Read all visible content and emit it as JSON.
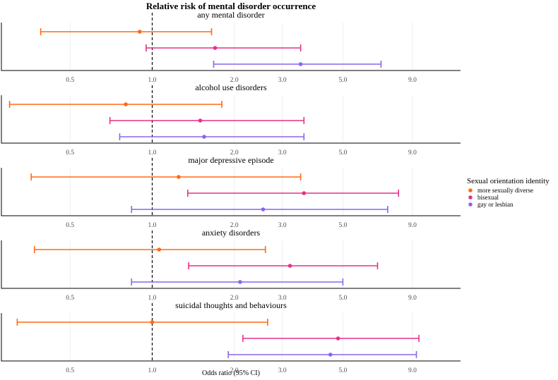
{
  "chart_data": {
    "type": "forest",
    "title": "Relative risk of mental disorder occurrence",
    "xlabel": "Odds ratio (95% CI)",
    "x_scale": "log",
    "xlim": [
      0.28,
      13.5
    ],
    "x_ticks": [
      0.5,
      1.0,
      2.0,
      3.0,
      5.0,
      9.0
    ],
    "x_tick_labels": [
      "0.5",
      "1.0",
      "2.0",
      "3.0",
      "5.0",
      "9.0"
    ],
    "reference_line": 1.0,
    "legend": {
      "title": "Sexual orientation identity",
      "position": "right",
      "entries": [
        {
          "name": "more sexually diverse",
          "color": "#FF6A13"
        },
        {
          "name": "bisexual",
          "color": "#E6308A"
        },
        {
          "name": "gay or lesbian",
          "color": "#8866EE"
        }
      ]
    },
    "panels": [
      {
        "title": "any mental disorder",
        "rows": [
          {
            "group": "more sexually diverse",
            "or": 0.9,
            "lower": 0.39,
            "upper": 1.65
          },
          {
            "group": "bisexual",
            "or": 1.7,
            "lower": 0.95,
            "upper": 3.5
          },
          {
            "group": "gay or lesbian",
            "or": 3.5,
            "lower": 1.68,
            "upper": 6.9
          }
        ]
      },
      {
        "title": "alcohol use disorders",
        "rows": [
          {
            "group": "more sexually diverse",
            "or": 0.8,
            "lower": 0.3,
            "upper": 1.8
          },
          {
            "group": "bisexual",
            "or": 1.5,
            "lower": 0.7,
            "upper": 3.6
          },
          {
            "group": "gay or lesbian",
            "or": 1.55,
            "lower": 0.76,
            "upper": 3.6
          }
        ]
      },
      {
        "title": "major depressive episode",
        "rows": [
          {
            "group": "more sexually diverse",
            "or": 1.25,
            "lower": 0.36,
            "upper": 3.5
          },
          {
            "group": "bisexual",
            "or": 3.6,
            "lower": 1.35,
            "upper": 8.0
          },
          {
            "group": "gay or lesbian",
            "or": 2.55,
            "lower": 0.84,
            "upper": 7.3
          }
        ]
      },
      {
        "title": "anxiety disorders",
        "rows": [
          {
            "group": "more sexually diverse",
            "or": 1.06,
            "lower": 0.37,
            "upper": 2.6
          },
          {
            "group": "bisexual",
            "or": 3.2,
            "lower": 1.36,
            "upper": 6.7
          },
          {
            "group": "gay or lesbian",
            "or": 2.1,
            "lower": 0.84,
            "upper": 5.0
          }
        ]
      },
      {
        "title": "suicidal thoughts and behaviours",
        "rows": [
          {
            "group": "more sexually diverse",
            "or": 1.0,
            "lower": 0.32,
            "upper": 2.65
          },
          {
            "group": "bisexual",
            "or": 4.8,
            "lower": 2.15,
            "upper": 9.5
          },
          {
            "group": "gay or lesbian",
            "or": 4.5,
            "lower": 1.9,
            "upper": 9.3
          }
        ]
      }
    ]
  }
}
